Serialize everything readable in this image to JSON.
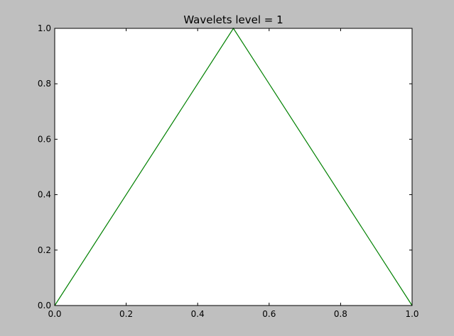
{
  "chart_data": {
    "type": "line",
    "title": "Wavelets level = 1",
    "xlabel": "",
    "ylabel": "",
    "xlim": [
      0.0,
      1.0
    ],
    "ylim": [
      0.0,
      1.0
    ],
    "x_ticks": [
      {
        "value": 0.0,
        "label": "0.0"
      },
      {
        "value": 0.2,
        "label": "0.2"
      },
      {
        "value": 0.4,
        "label": "0.4"
      },
      {
        "value": 0.6,
        "label": "0.6"
      },
      {
        "value": 0.8,
        "label": "0.8"
      },
      {
        "value": 1.0,
        "label": "1.0"
      }
    ],
    "y_ticks": [
      {
        "value": 0.0,
        "label": "0.0"
      },
      {
        "value": 0.2,
        "label": "0.2"
      },
      {
        "value": 0.4,
        "label": "0.4"
      },
      {
        "value": 0.6,
        "label": "0.6"
      },
      {
        "value": 0.8,
        "label": "0.8"
      },
      {
        "value": 1.0,
        "label": "1.0"
      }
    ],
    "grid": false,
    "legend": "none",
    "series": [
      {
        "color": "#008000",
        "x": [
          0.0,
          0.5,
          1.0
        ],
        "y": [
          0.0,
          1.0,
          0.0
        ]
      }
    ],
    "colors": {
      "figure_background": "#bfbfbf",
      "axes_background": "#ffffff",
      "axes_edge": "#000000"
    }
  }
}
